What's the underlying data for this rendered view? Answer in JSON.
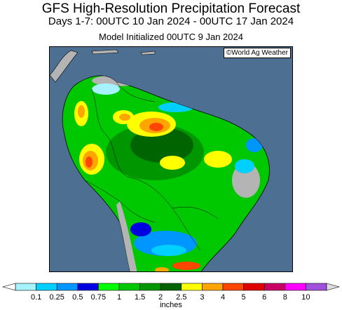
{
  "header": {
    "title": "GFS High-Resolution Precipitation Forecast",
    "period": "Days 1-7: 00UTC 10 Jan 2024 - 00UTC 17 Jan 2024",
    "init": "Model Initialized 00UTC 9 Jan 2024"
  },
  "map": {
    "credit": "©World Ag Weather",
    "ocean_color": "#4d6f91",
    "land_dry_color": "#b4b4b4"
  },
  "legend": {
    "units": "inches",
    "ticks": [
      "0.1",
      "0.25",
      "0.5",
      "0.75",
      "1",
      "1.5",
      "2",
      "2.5",
      "3",
      "4",
      "5",
      "6",
      "8",
      "10"
    ],
    "colors": [
      "#a6f2ff",
      "#00d0ff",
      "#0096ff",
      "#0000e0",
      "#00ff00",
      "#00c800",
      "#009600",
      "#006400",
      "#ffff00",
      "#ffa500",
      "#ff4500",
      "#e00000",
      "#c80064",
      "#ff00ff",
      "#a050dc"
    ]
  }
}
